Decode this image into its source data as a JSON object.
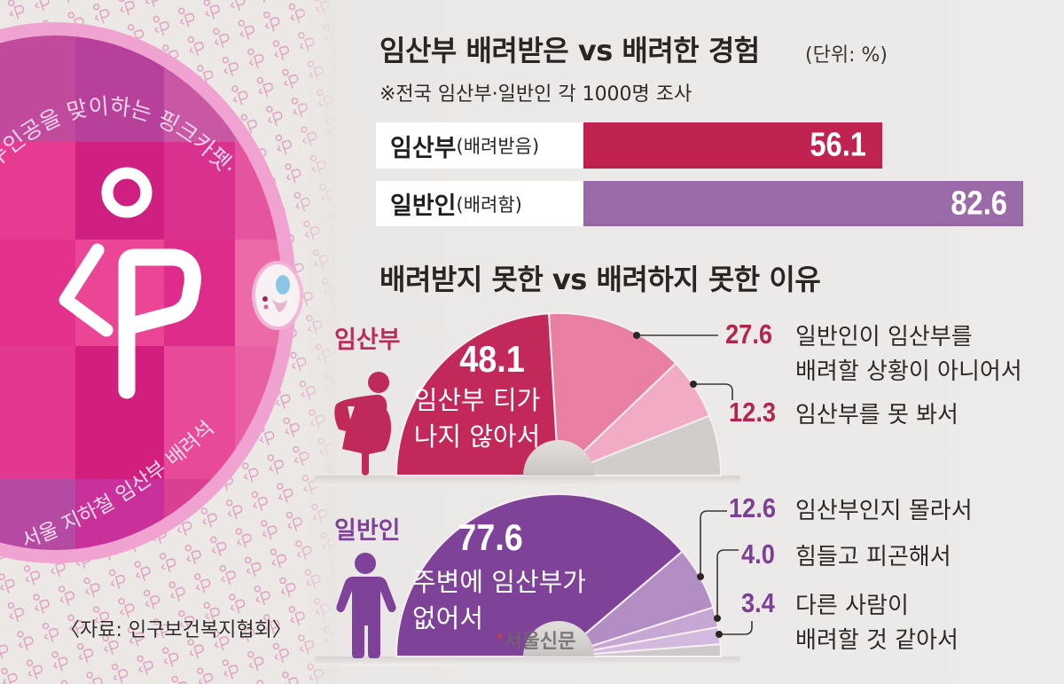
{
  "photo": {
    "sticker_top_text": "주인공을 맞이하는 핑크카펫·",
    "sticker_bottom_text": "서울 지하철 임산부 배려석",
    "logo": "pink-carpet-logo"
  },
  "header": {
    "title": "임산부 배려받은 vs 배려한 경험",
    "unit": "(단위: %)",
    "note": "※전국 임산부·일반인 각 1000명 조사"
  },
  "experience": {
    "rows": [
      {
        "group": "임산부",
        "qualifier": "(배려받음)",
        "value": "56.1",
        "color": "#c0234f"
      },
      {
        "group": "일반인",
        "qualifier": "(배려함)",
        "value": "82.6",
        "color": "#9b6ba9"
      }
    ]
  },
  "reasons": {
    "title": "배려받지 못한 vs 배려하지 못한 이유",
    "pregnant": {
      "label": "임산부",
      "color": "#c02a5a",
      "main": {
        "value": "48.1",
        "line1": "임산부 티가",
        "line2": "나지 않아서"
      },
      "callouts": [
        {
          "value": "27.6",
          "line1": "일반인이 임산부를",
          "line2": "배려할 상황이 아니어서"
        },
        {
          "value": "12.3",
          "line1": "임산부를 못 봐서"
        }
      ]
    },
    "general": {
      "label": "일반인",
      "color": "#7e4398",
      "main": {
        "value": "77.6",
        "line1": "주변에 임산부가",
        "line2": "없어서"
      },
      "callouts": [
        {
          "value": "12.6",
          "line1": "임산부인지 몰라서"
        },
        {
          "value": "4.0",
          "line1": "힘들고 피곤해서"
        },
        {
          "value": "3.4",
          "line1": "다른 사람이",
          "line2": "배려할 것 같아서"
        }
      ]
    }
  },
  "source": "〈자료: 인구보건복지협회〉",
  "watermark": {
    "mark": "’",
    "text": "서울신문"
  },
  "chart_data": [
    {
      "type": "bar",
      "orientation": "horizontal",
      "title": "임산부 배려받은 vs 배려한 경험",
      "subtitle": "※전국 임산부·일반인 각 1000명 조사",
      "unit": "%",
      "categories": [
        "임산부(배려받음)",
        "일반인(배려함)"
      ],
      "values": [
        56.1,
        82.6
      ],
      "colors": [
        "#c0234f",
        "#9b6ba9"
      ],
      "xlim": [
        0,
        100
      ],
      "grid": false,
      "legend": null
    },
    {
      "type": "pie",
      "variant": "semi-donut",
      "title": "배려받지 못한 이유 (임산부)",
      "categories": [
        "임산부 티가 나지 않아서",
        "일반인이 임산부를 배려할 상황이 아니어서",
        "임산부를 못 봐서",
        ""
      ],
      "values": [
        48.1,
        27.6,
        12.3,
        12.0
      ],
      "colors": [
        "#c2285a",
        "#e97fa3",
        "#f2abc5",
        "#d0cdcb"
      ],
      "unit": "%"
    },
    {
      "type": "pie",
      "variant": "semi-donut",
      "title": "배려하지 못한 이유 (일반인)",
      "categories": [
        "주변에 임산부가 없어서",
        "임산부인지 몰라서",
        "힘들고 피곤해서",
        "다른 사람이 배려할 것 같아서",
        ""
      ],
      "values": [
        77.6,
        12.6,
        4.0,
        3.4,
        2.4
      ],
      "colors": [
        "#7e4398",
        "#b38ec4",
        "#c6a6d3",
        "#d3b9de",
        "#cdc9cb"
      ],
      "unit": "%"
    }
  ]
}
